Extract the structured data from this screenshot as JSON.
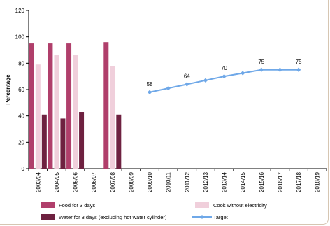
{
  "chart_data": {
    "type": "bar",
    "title": "",
    "xlabel": "",
    "ylabel": "Percentage",
    "ylim": [
      0,
      120
    ],
    "yticks": [
      0,
      20,
      40,
      60,
      80,
      100,
      120
    ],
    "grid": false,
    "legend_position": "bottom",
    "categories": [
      "2003/04",
      "2004/05",
      "2005/06",
      "2006/07",
      "2007/08",
      "2008/09",
      "2009/10",
      "2010/11",
      "2011/12",
      "2012/13",
      "2013/14",
      "2014/15",
      "2015/16",
      "2016/17",
      "2017/18",
      "2018/19"
    ],
    "series": [
      {
        "name": "Food for 3 days",
        "kind": "bar",
        "color": "#b03f6b",
        "values": [
          95,
          95,
          95,
          null,
          96,
          null,
          null,
          null,
          null,
          null,
          null,
          null,
          null,
          null,
          null,
          null
        ]
      },
      {
        "name": "Cook without electricity",
        "kind": "bar",
        "color": "#f0cfdb",
        "values": [
          79,
          86,
          86,
          null,
          78,
          null,
          null,
          null,
          null,
          null,
          null,
          null,
          null,
          null,
          null,
          null
        ]
      },
      {
        "name": "Water for 3 days (excluding hot water cylinder)",
        "kind": "bar",
        "color": "#6e2140",
        "values": [
          41,
          38,
          43,
          null,
          41,
          null,
          null,
          null,
          null,
          null,
          null,
          null,
          null,
          null,
          null,
          null
        ]
      },
      {
        "name": "Target",
        "kind": "line",
        "color": "#6fa8e8",
        "values": [
          null,
          null,
          null,
          null,
          null,
          null,
          58,
          61,
          64,
          67,
          70,
          72.5,
          75,
          75,
          75,
          null
        ]
      }
    ],
    "data_labels": [
      {
        "category": "2009/10",
        "text": "58",
        "value": 58
      },
      {
        "category": "2011/12",
        "text": "64",
        "value": 64
      },
      {
        "category": "2013/14",
        "text": "70",
        "value": 70
      },
      {
        "category": "2015/16",
        "text": "75",
        "value": 75
      },
      {
        "category": "2017/18",
        "text": "75",
        "value": 75
      }
    ]
  }
}
